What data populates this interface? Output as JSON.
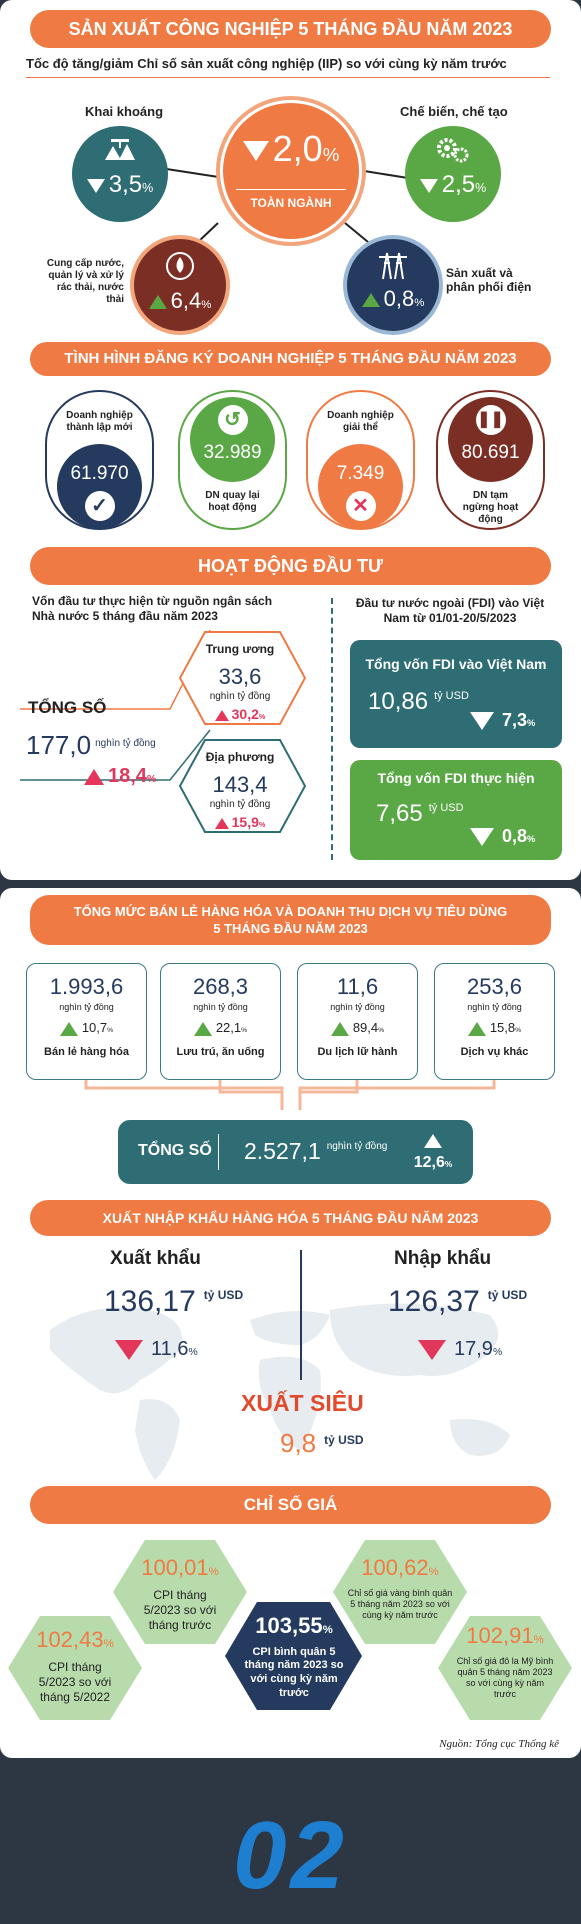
{
  "iip": {
    "title": "SẢN XUẤT CÔNG NGHIỆP 5 THÁNG ĐẦU NĂM 2023",
    "subtitle": "Tốc độ tăng/giảm Chỉ số sản xuất công nghiệp (IIP) so với cùng kỳ năm trước",
    "total": {
      "value": "2,0",
      "unit": "%",
      "label": "TOÀN NGÀNH",
      "direction": "down"
    },
    "items": [
      {
        "label": "Khai khoáng",
        "value": "3,5",
        "unit": "%",
        "direction": "down",
        "icon": "mining-icon",
        "color": "#2e6d73"
      },
      {
        "label": "Chế biến, chế tạo",
        "value": "2,5",
        "unit": "%",
        "direction": "down",
        "icon": "gears-icon",
        "color": "#5aa845"
      },
      {
        "label": "Cung cấp nước, quản lý và xử lý rác thải, nước thải",
        "value": "6,4",
        "unit": "%",
        "direction": "up",
        "icon": "water-drop-icon",
        "color": "#7b2e24"
      },
      {
        "label": "Sản xuất và phân phối điện",
        "value": "0,8",
        "unit": "%",
        "direction": "up",
        "icon": "power-tower-icon",
        "color": "#243a5e"
      }
    ]
  },
  "enterprise": {
    "title": "TÌNH HÌNH ĐĂNG KÝ DOANH NGHIỆP 5 THÁNG ĐẦU NĂM 2023",
    "items": [
      {
        "label": "Doanh nghiệp thành lập mới",
        "value": "61.970",
        "icon": "check-icon",
        "color": "#243a5e"
      },
      {
        "label": "DN quay lại hoạt động",
        "value": "32.989",
        "icon": "return-arrow-icon",
        "color": "#5aa845"
      },
      {
        "label": "Doanh nghiệp giải thể",
        "value": "7.349",
        "icon": "x-icon",
        "color": "#f07a43"
      },
      {
        "label": "DN tạm ngừng hoạt động",
        "value": "80.691",
        "icon": "pause-icon",
        "color": "#7b2e24"
      }
    ]
  },
  "investment": {
    "title": "HOẠT ĐỘNG ĐẦU TƯ",
    "left_title": "Vốn đầu tư thực hiện từ nguồn ngân sách Nhà nước 5 tháng đầu năm 2023",
    "total_label": "TỔNG SỐ",
    "total_value": "177,0",
    "total_unit": "nghìn tỷ đồng",
    "total_change": "18,4",
    "total_change_unit": "%",
    "central": {
      "label": "Trung ương",
      "value": "33,6",
      "unit": "nghìn tỷ đồng",
      "change": "30,2",
      "change_unit": "%"
    },
    "local": {
      "label": "Địa phương",
      "value": "143,4",
      "unit": "nghìn tỷ đồng",
      "change": "15,9",
      "change_unit": "%"
    },
    "right_title": "Đầu tư nước ngoài (FDI) vào Việt Nam từ 01/01-20/5/2023",
    "fdi1": {
      "label": "Tổng vốn FDI vào Việt Nam",
      "value": "10,86",
      "unit": "tỷ USD",
      "change": "7,3",
      "change_unit": "%"
    },
    "fdi2": {
      "label": "Tổng vốn FDI thực hiện",
      "value": "7,65",
      "unit": "tỷ USD",
      "change": "0,8",
      "change_unit": "%"
    }
  },
  "retail": {
    "title_line1": "TỔNG MỨC BÁN LẺ HÀNG HÓA VÀ DOANH THU DỊCH VỤ TIÊU DÙNG",
    "title_line2": "5 THÁNG ĐẦU NĂM 2023",
    "items": [
      {
        "value": "1.993,6",
        "unit": "nghìn tỷ đồng",
        "change": "10,7",
        "change_unit": "%",
        "label": "Bán lẻ hàng hóa"
      },
      {
        "value": "268,3",
        "unit": "nghìn tỷ đồng",
        "change": "22,1",
        "change_unit": "%",
        "label": "Lưu trú, ăn uống"
      },
      {
        "value": "11,6",
        "unit": "nghìn tỷ đồng",
        "change": "89,4",
        "change_unit": "%",
        "label": "Du lịch lữ hành"
      },
      {
        "value": "253,6",
        "unit": "nghìn tỷ đồng",
        "change": "15,8",
        "change_unit": "%",
        "label": "Dịch vụ khác"
      }
    ],
    "total_label": "TỔNG SỐ",
    "total_value": "2.527,1",
    "total_unit": "nghìn tỷ đồng",
    "total_change": "12,6",
    "total_change_unit": "%"
  },
  "trade": {
    "title": "XUẤT NHẬP KHẨU HÀNG HÓA 5 THÁNG ĐẦU NĂM 2023",
    "export": {
      "label": "Xuất khẩu",
      "value": "136,17",
      "unit": "tỷ USD",
      "change": "11,6",
      "change_unit": "%"
    },
    "import": {
      "label": "Nhập khẩu",
      "value": "126,37",
      "unit": "tỷ USD",
      "change": "17,9",
      "change_unit": "%"
    },
    "surplus": {
      "label": "XUẤT SIÊU",
      "value": "9,8",
      "unit": "tỷ USD"
    }
  },
  "cpi": {
    "title": "CHỈ SỐ GIÁ",
    "items": [
      {
        "value": "102,43",
        "unit": "%",
        "label": "CPI tháng 5/2023 so với tháng 5/2022"
      },
      {
        "value": "100,01",
        "unit": "%",
        "label": "CPI tháng 5/2023 so với tháng trước"
      },
      {
        "value": "103,55",
        "unit": "%",
        "label": "CPI bình quân 5 tháng năm 2023 so với cùng kỳ năm trước"
      },
      {
        "value": "100,62",
        "unit": "%",
        "label": "Chỉ số giá vàng bình quân 5 tháng năm 2023 so với cùng kỳ năm trước"
      },
      {
        "value": "102,91",
        "unit": "%",
        "label": "Chỉ số giá đô la Mỹ bình quân 5 tháng năm 2023 so với cùng kỳ năm trước"
      }
    ],
    "source": "Nguồn: Tổng cục Thống kê"
  },
  "page_number": "02"
}
